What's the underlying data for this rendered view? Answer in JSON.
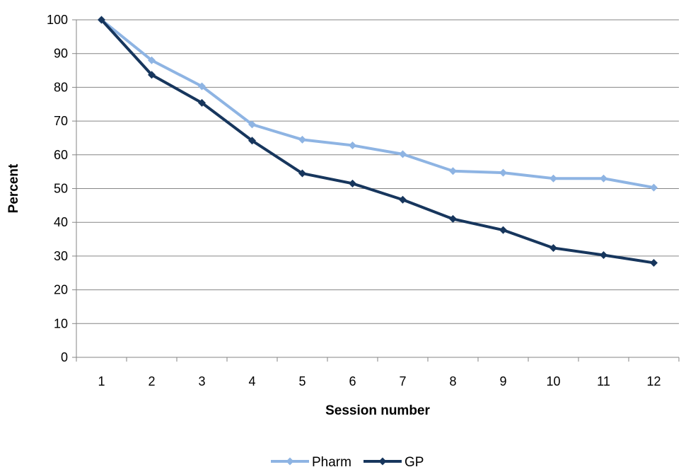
{
  "chart_data": {
    "type": "line",
    "title": "",
    "xlabel": "Session number",
    "ylabel": "Percent",
    "categories": [
      "1",
      "2",
      "3",
      "4",
      "5",
      "6",
      "7",
      "8",
      "9",
      "10",
      "11",
      "12"
    ],
    "ylim": [
      0,
      100
    ],
    "yticks": [
      0,
      10,
      20,
      30,
      40,
      50,
      60,
      70,
      80,
      90,
      100
    ],
    "grid": true,
    "legend_position": "bottom",
    "series": [
      {
        "name": "Pharm",
        "color": "#8EB4E3",
        "marker": "diamond",
        "values": [
          100,
          88,
          80.3,
          69,
          64.5,
          62.8,
          60.2,
          55.2,
          54.7,
          53,
          53,
          50.3
        ]
      },
      {
        "name": "GP",
        "color": "#17365D",
        "marker": "diamond",
        "values": [
          100,
          83.7,
          75.4,
          64.2,
          54.5,
          51.5,
          46.7,
          41,
          37.7,
          32.4,
          30.3,
          28
        ]
      }
    ]
  }
}
